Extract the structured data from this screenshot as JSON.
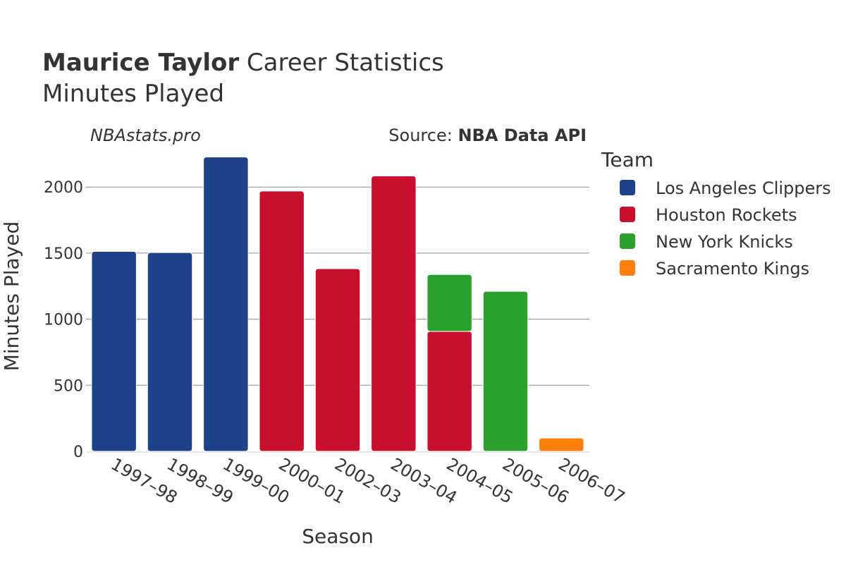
{
  "header": {
    "title_bold": "Maurice Taylor",
    "title_rest": " Career Statistics",
    "subtitle": "Minutes Played"
  },
  "credits": {
    "site": "NBAstats.pro",
    "source_prefix": "Source: ",
    "source_name": "NBA Data API"
  },
  "legend": {
    "title": "Team",
    "placement": "right"
  },
  "colors": {
    "background": "#ffffff",
    "gridline": "#8c8c8c",
    "axis_line": "#e6e6e6",
    "text": "#333333"
  },
  "chart_data": {
    "type": "bar",
    "stacked": true,
    "xlabel": "Season",
    "ylabel": "Minutes Played",
    "ylim": [
      0,
      2300
    ],
    "yticks": [
      0,
      500,
      1000,
      1500,
      2000
    ],
    "grid": true,
    "categories": [
      "1997–98",
      "1998–99",
      "1999–00",
      "2000–01",
      "2002–03",
      "2003–04",
      "2004–05",
      "2005–06",
      "2006–07"
    ],
    "series": [
      {
        "name": "Los Angeles Clippers",
        "color": "#1d428a",
        "values": [
          1513,
          1504,
          2227,
          0,
          0,
          0,
          0,
          0,
          0
        ]
      },
      {
        "name": "Houston Rockets",
        "color": "#c8102e",
        "values": [
          0,
          0,
          0,
          1970,
          1382,
          2084,
          908,
          0,
          0
        ]
      },
      {
        "name": "New York Knicks",
        "color": "#2ca02c",
        "values": [
          0,
          0,
          0,
          0,
          0,
          0,
          430,
          1211,
          0
        ]
      },
      {
        "name": "Sacramento Kings",
        "color": "#ff7f0e",
        "values": [
          0,
          0,
          0,
          0,
          0,
          0,
          0,
          0,
          101
        ]
      }
    ]
  }
}
